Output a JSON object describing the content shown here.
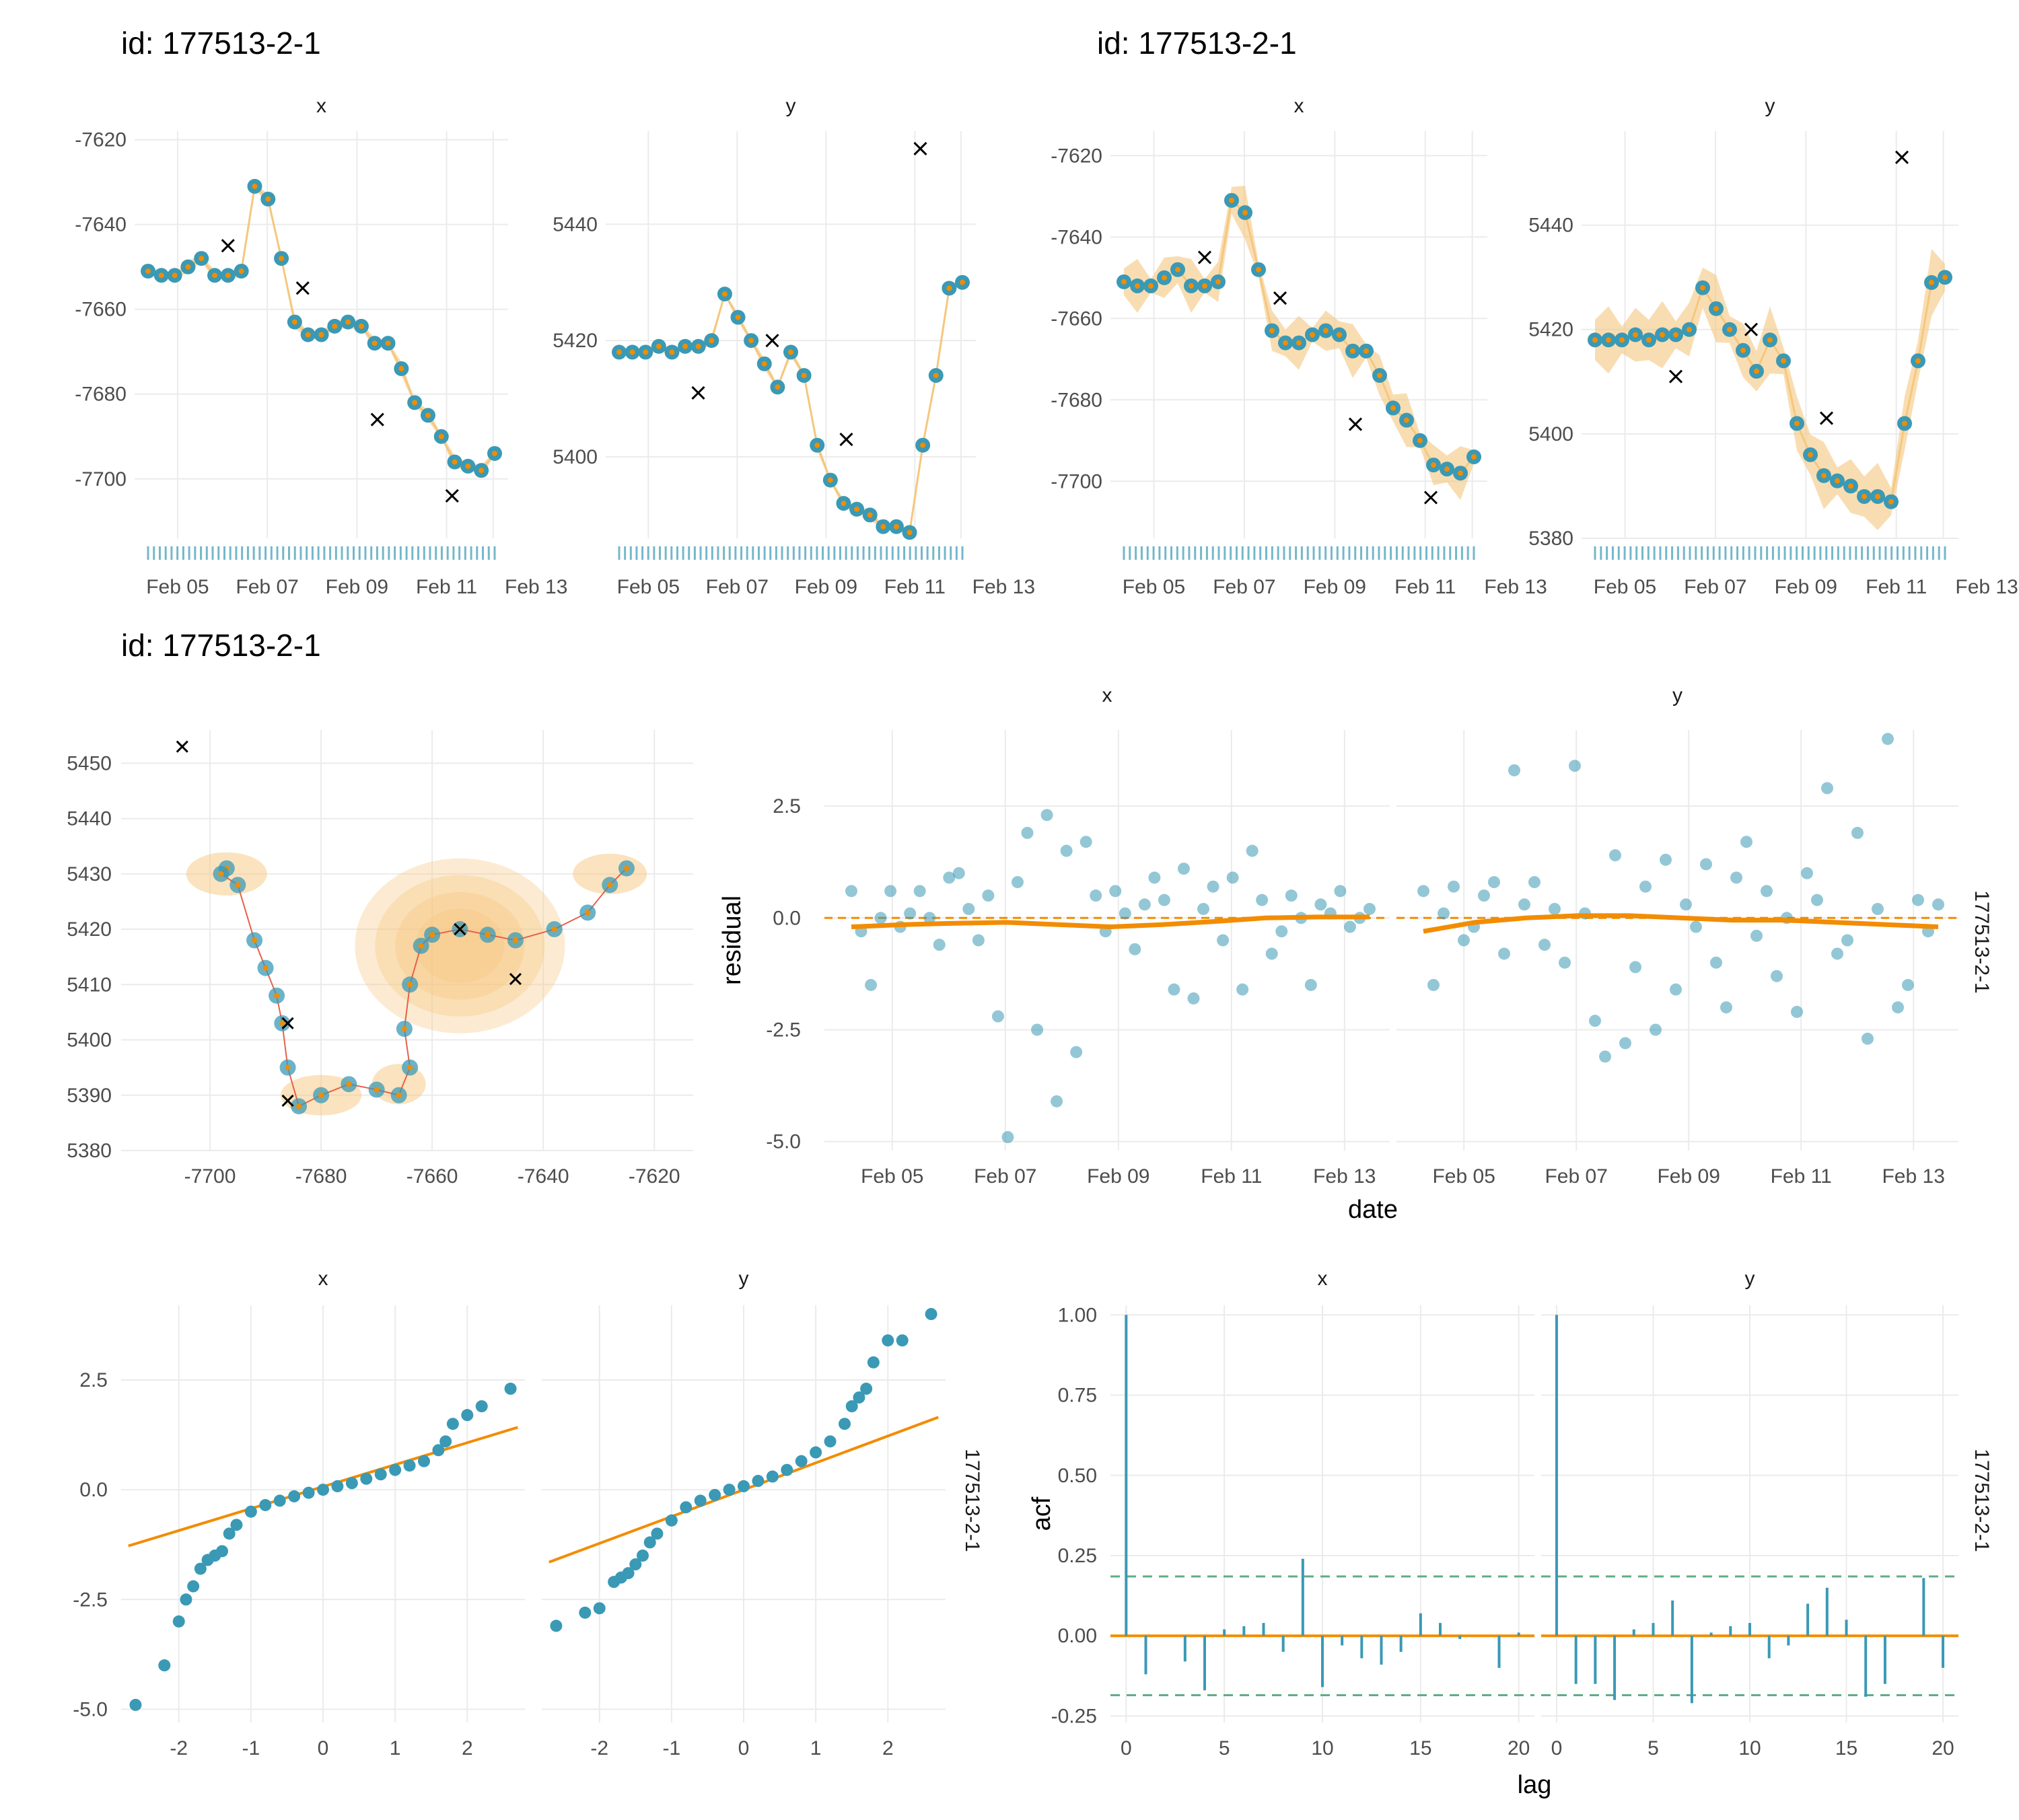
{
  "titles": {
    "row1_left": "id: 177513-2-1",
    "row1_right": "id: 177513-2-1",
    "row2": "id: 177513-2-1"
  },
  "facets": {
    "x": "x",
    "y": "y",
    "id": "177513-2-1"
  },
  "axis_titles": {
    "residual": "residual",
    "date": "date",
    "acf": "acf",
    "lag": "lag"
  },
  "colors": {
    "points": "#3a99b5",
    "fit": "#f28c00",
    "band": "#f5c77e",
    "obs": "#000000",
    "grid": "#ebebeb",
    "ci": "#5fad86"
  },
  "chart_data": [
    {
      "id": "ts-fitted-left",
      "type": "line",
      "title": "id: 177513-2-1",
      "panels": [
        {
          "facet": "x",
          "ylim": [
            -7714,
            -7618
          ],
          "yticks": [
            -7620,
            -7640,
            -7660,
            -7680,
            -7700
          ],
          "x": [
            "Feb 04",
            "Feb 04.5",
            "Feb 05",
            "Feb 05.3",
            "Feb 05.6",
            "Feb 06",
            "Feb 06.3",
            "Feb 06.6",
            "Feb 07",
            "Feb 07.3",
            "Feb 07.6",
            "Feb 08",
            "Feb 08.4",
            "Feb 08.8",
            "Feb 09",
            "Feb 09.3",
            "Feb 09.6",
            "Feb 10",
            "Feb 10.4",
            "Feb 10.8",
            "Feb 11",
            "Feb 11.3",
            "Feb 11.6",
            "Feb 12",
            "Feb 12.4",
            "Feb 12.8",
            "Feb 13"
          ],
          "values": [
            -7651,
            -7652,
            -7652,
            -7650,
            -7648,
            -7652,
            -7652,
            -7651,
            -7631,
            -7634,
            -7648,
            -7663,
            -7666,
            -7666,
            -7664,
            -7663,
            -7664,
            -7668,
            -7668,
            -7674,
            -7682,
            -7685,
            -7690,
            -7696,
            -7697,
            -7698,
            -7694
          ]
        },
        {
          "facet": "y",
          "ylim": [
            5386,
            5456
          ],
          "yticks": [
            5440,
            5420,
            5400
          ],
          "x": [
            "Feb 04",
            "Feb 04.5",
            "Feb 05",
            "Feb 05.3",
            "Feb 05.6",
            "Feb 06",
            "Feb 06.3",
            "Feb 06.6",
            "Feb 07",
            "Feb 07.3",
            "Feb 07.6",
            "Feb 08",
            "Feb 08.4",
            "Feb 08.8",
            "Feb 09",
            "Feb 09.3",
            "Feb 09.6",
            "Feb 10",
            "Feb 10.4",
            "Feb 10.8",
            "Feb 11",
            "Feb 11.3",
            "Feb 11.6",
            "Feb 12",
            "Feb 12.4",
            "Feb 12.8",
            "Feb 13"
          ],
          "values": [
            5418,
            5418,
            5418,
            5419,
            5418,
            5419,
            5419,
            5420,
            5428,
            5424,
            5420,
            5416,
            5412,
            5418,
            5414,
            5402,
            5396,
            5392,
            5391,
            5390,
            5388,
            5388,
            5387,
            5402,
            5414,
            5429,
            5430
          ]
        }
      ],
      "observations": {
        "x": [
          -7645,
          -7655,
          -7686,
          -7704
        ],
        "y": [
          5411,
          5420,
          5403,
          5453
        ]
      },
      "xticks": [
        "Feb 05",
        "Feb 07",
        "Feb 09",
        "Feb 11",
        "Feb 13"
      ]
    },
    {
      "id": "ts-fitted-right",
      "type": "line",
      "title": "id: 177513-2-1",
      "panels": [
        {
          "facet": "x",
          "ylim": [
            -7714,
            -7614
          ],
          "yticks": [
            -7620,
            -7640,
            -7660,
            -7680,
            -7700
          ]
        },
        {
          "facet": "y",
          "ylim": [
            5380,
            5458
          ],
          "yticks": [
            5440,
            5420,
            5400,
            5380
          ]
        }
      ],
      "xticks": [
        "Feb 05",
        "Feb 07",
        "Feb 09",
        "Feb 11",
        "Feb 13"
      ]
    },
    {
      "id": "track-map",
      "type": "scatter",
      "title": "id: 177513-2-1",
      "xlim": [
        -7716,
        -7613
      ],
      "ylim": [
        5380,
        5456
      ],
      "xticks": [
        -7700,
        -7680,
        -7660,
        -7640,
        -7620
      ],
      "yticks": [
        5380,
        5390,
        5400,
        5410,
        5420,
        5430,
        5440,
        5450
      ],
      "track_x": [
        -7697,
        -7698,
        -7695,
        -7692,
        -7690,
        -7688,
        -7687,
        -7686,
        -7684,
        -7680,
        -7675,
        -7670,
        -7666,
        -7664,
        -7665,
        -7664,
        -7662,
        -7660,
        -7655,
        -7650,
        -7645,
        -7638,
        -7632,
        -7628,
        -7625
      ],
      "track_y": [
        5431,
        5430,
        5428,
        5418,
        5413,
        5408,
        5403,
        5395,
        5388,
        5390,
        5392,
        5391,
        5390,
        5395,
        5402,
        5410,
        5417,
        5419,
        5420,
        5419,
        5418,
        5420,
        5423,
        5428,
        5431
      ],
      "observations_x": [
        -7705,
        -7655,
        -7645,
        -7686,
        -7686
      ],
      "observations_y": [
        5453,
        5420,
        5411,
        5403,
        5389
      ]
    },
    {
      "id": "residuals",
      "type": "scatter",
      "xlabel": "date",
      "ylabel": "residual",
      "ylim": [
        -5.2,
        4.2
      ],
      "yticks": [
        2.5,
        0.0,
        -2.5,
        -5.0
      ],
      "xticks": [
        "Feb 05",
        "Feb 07",
        "Feb 09",
        "Feb 11",
        "Feb 13"
      ],
      "series": [
        {
          "facet": "x",
          "residuals": [
            0.6,
            -0.3,
            -1.5,
            0.0,
            0.6,
            -0.2,
            0.1,
            0.6,
            0.0,
            -0.6,
            0.9,
            1.0,
            0.2,
            -0.5,
            0.5,
            -2.2,
            -4.9,
            0.8,
            1.9,
            -2.5,
            2.3,
            -4.1,
            1.5,
            -3.0,
            1.7,
            0.5,
            -0.3,
            0.6,
            0.1,
            -0.7,
            0.3,
            0.9,
            0.4,
            -1.6,
            1.1,
            -1.8,
            0.2,
            0.7,
            -0.5,
            0.9,
            -1.6,
            1.5,
            0.4,
            -0.8,
            -0.3,
            0.5,
            0.0,
            -1.5,
            0.3,
            0.1,
            0.6,
            -0.2,
            0.0,
            0.2
          ],
          "trend": [
            -0.2,
            -0.15,
            -0.12,
            -0.1,
            -0.15,
            -0.2,
            -0.15,
            -0.08,
            0.0,
            0.02,
            0.02
          ]
        },
        {
          "facet": "y",
          "residuals": [
            0.6,
            -1.5,
            0.1,
            0.7,
            -0.5,
            -0.2,
            0.5,
            0.8,
            -0.8,
            3.3,
            0.3,
            0.8,
            -0.6,
            0.2,
            -1.0,
            3.4,
            0.1,
            -2.3,
            -3.1,
            1.4,
            -2.8,
            -1.1,
            0.7,
            -2.5,
            1.3,
            -1.6,
            0.3,
            -0.2,
            1.2,
            -1.0,
            -2.0,
            0.9,
            1.7,
            -0.4,
            0.6,
            -1.3,
            0.0,
            -2.1,
            1.0,
            0.4,
            2.9,
            -0.8,
            -0.5,
            1.9,
            -2.7,
            0.2,
            4.0,
            -2.0,
            -1.5,
            0.4,
            -0.3,
            0.3
          ],
          "trend": [
            -0.3,
            -0.1,
            0.0,
            0.05,
            0.05,
            0.0,
            -0.05,
            -0.05,
            -0.1,
            -0.15,
            -0.2
          ]
        }
      ]
    },
    {
      "id": "qq-plot",
      "type": "scatter",
      "ylim": [
        -5.3,
        4.2
      ],
      "yticks": [
        2.5,
        0.0,
        -2.5,
        -5.0
      ],
      "xticks": [
        -2,
        -1,
        0,
        1,
        2
      ],
      "series": [
        {
          "facet": "x",
          "theoretical": [
            -2.6,
            -2.2,
            -2.0,
            -1.9,
            -1.8,
            -1.7,
            -1.6,
            -1.5,
            -1.4,
            -1.3,
            -1.2,
            -1.0,
            -0.8,
            -0.6,
            -0.4,
            -0.2,
            0.0,
            0.2,
            0.4,
            0.6,
            0.8,
            1.0,
            1.2,
            1.4,
            1.6,
            1.7,
            1.8,
            2.0,
            2.2,
            2.6
          ],
          "sample": [
            -4.9,
            -4.0,
            -3.0,
            -2.5,
            -2.2,
            -1.8,
            -1.6,
            -1.5,
            -1.4,
            -1.0,
            -0.8,
            -0.5,
            -0.35,
            -0.25,
            -0.15,
            -0.07,
            0.0,
            0.08,
            0.15,
            0.25,
            0.35,
            0.45,
            0.55,
            0.65,
            0.9,
            1.1,
            1.5,
            1.7,
            1.9,
            2.3
          ],
          "qqline": [
            [
              -2.7,
              -1.28
            ],
            [
              2.7,
              1.42
            ]
          ]
        },
        {
          "facet": "y",
          "theoretical": [
            -2.6,
            -2.2,
            -2.0,
            -1.8,
            -1.7,
            -1.6,
            -1.5,
            -1.4,
            -1.3,
            -1.2,
            -1.0,
            -0.8,
            -0.6,
            -0.4,
            -0.2,
            0.0,
            0.2,
            0.4,
            0.6,
            0.8,
            1.0,
            1.2,
            1.4,
            1.5,
            1.6,
            1.7,
            1.8,
            2.0,
            2.2,
            2.6
          ],
          "sample": [
            -3.1,
            -2.8,
            -2.7,
            -2.1,
            -2.0,
            -1.9,
            -1.7,
            -1.5,
            -1.2,
            -1.0,
            -0.7,
            -0.4,
            -0.25,
            -0.12,
            0.0,
            0.08,
            0.2,
            0.3,
            0.45,
            0.65,
            0.85,
            1.1,
            1.5,
            1.9,
            2.1,
            2.3,
            2.9,
            3.4,
            3.4,
            4.0
          ],
          "qqline": [
            [
              -2.7,
              -1.65
            ],
            [
              2.7,
              1.65
            ]
          ]
        }
      ]
    },
    {
      "id": "acf",
      "type": "bar",
      "xlabel": "lag",
      "ylabel": "acf",
      "ylim": [
        -0.27,
        1.03
      ],
      "yticks": [
        1.0,
        0.75,
        0.5,
        0.25,
        0.0,
        -0.25
      ],
      "xticks": [
        0,
        5,
        10,
        15,
        20
      ],
      "ci": 0.185,
      "series": [
        {
          "facet": "x",
          "lags": [
            0,
            1,
            2,
            3,
            4,
            5,
            6,
            7,
            8,
            9,
            10,
            11,
            12,
            13,
            14,
            15,
            16,
            17,
            18,
            19,
            20
          ],
          "values": [
            1.0,
            -0.12,
            0.0,
            -0.08,
            -0.17,
            0.02,
            0.03,
            0.04,
            -0.05,
            0.24,
            -0.16,
            -0.03,
            -0.07,
            -0.09,
            -0.05,
            0.07,
            0.04,
            -0.01,
            0.0,
            -0.1,
            0.01
          ]
        },
        {
          "facet": "y",
          "lags": [
            0,
            1,
            2,
            3,
            4,
            5,
            6,
            7,
            8,
            9,
            10,
            11,
            12,
            13,
            14,
            15,
            16,
            17,
            18,
            19,
            20
          ],
          "values": [
            1.0,
            -0.15,
            -0.15,
            -0.2,
            0.02,
            0.04,
            0.11,
            -0.21,
            0.01,
            0.03,
            0.04,
            -0.07,
            -0.03,
            0.1,
            0.15,
            0.05,
            -0.19,
            -0.15,
            0.0,
            0.18,
            -0.1
          ]
        }
      ]
    }
  ]
}
